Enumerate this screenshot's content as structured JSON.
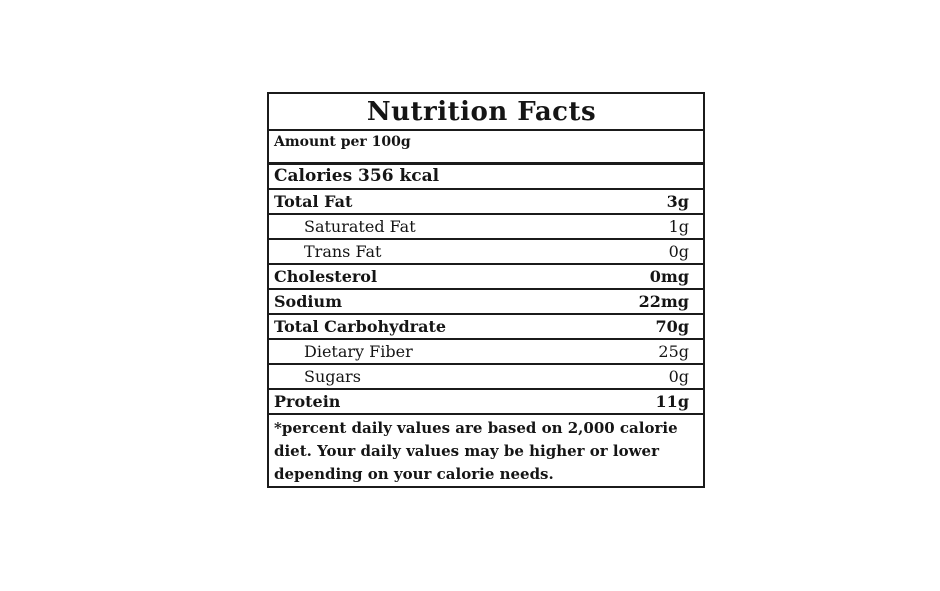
{
  "nutrition_label": {
    "title": "Nutrition Facts",
    "amount_per": "Amount per 100g",
    "calories": "Calories 356 kcal",
    "rows": [
      {
        "name": "Total Fat",
        "value": "3g",
        "style": "main"
      },
      {
        "name": "Saturated Fat",
        "value": "1g",
        "style": "sub"
      },
      {
        "name": "Trans Fat",
        "value": "0g",
        "style": "sub"
      },
      {
        "name": "Cholesterol",
        "value": "0mg",
        "style": "main"
      },
      {
        "name": "Sodium",
        "value": "22mg",
        "style": "main"
      },
      {
        "name": "Total Carbohydrate",
        "value": "70g",
        "style": "main"
      },
      {
        "name": "Dietary Fiber",
        "value": "25g",
        "style": "sub"
      },
      {
        "name": "Sugars",
        "value": "0g",
        "style": "sub"
      },
      {
        "name": "Protein",
        "value": "11g",
        "style": "main"
      }
    ],
    "footnote_lines": [
      "*percent daily values are based on 2,000 calorie",
      "diet. Your daily values may be higher or lower",
      "depending on your calorie needs."
    ],
    "colors": {
      "border": "#1b1b1b",
      "text": "#151515",
      "background": "#ffffff"
    }
  }
}
